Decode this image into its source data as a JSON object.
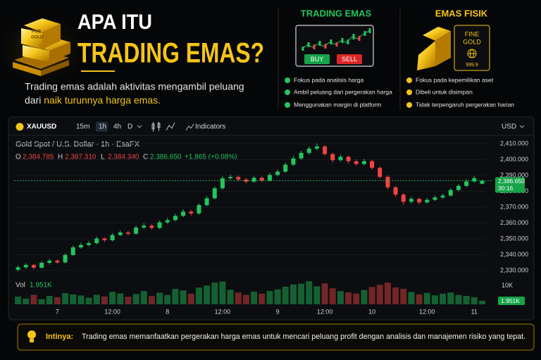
{
  "header": {
    "title_line1": "APA ITU",
    "title_line2": "TRADING EMAS?",
    "description_line1": "Trading emas adalah aktivitas mengambil peluang",
    "description_line2": "dari",
    "description_highlight": "naik turunnya harga emas."
  },
  "panels": [
    {
      "title": "TRADING EMAS",
      "buttons": [
        "BUY",
        "SELL"
      ],
      "points": [
        "Fokus pada analisis harga",
        "Ambil peluang dari pergerakan harga",
        "Menggunakan margin di platform"
      ]
    },
    {
      "title": "EMAS FISIK",
      "bar_text": [
        "FINE",
        "GOLD"
      ],
      "purity": "999.9",
      "points": [
        "Fokus pada kepemilikan aset",
        "Dibeli untuk disimpan",
        "Tidak terpengaruh pergerakan harian"
      ]
    }
  ],
  "toolbar": {
    "symbol": "XAUUSD",
    "intervals": [
      "15m",
      "1h",
      "4h",
      "D"
    ],
    "indicators": "Indicators",
    "currency": "USD"
  },
  "chart_data": {
    "type": "candlestick",
    "subtitle": "Gold Spot / U.S. Dollar · 1h · EsaFX",
    "ohlc_legend": [
      {
        "key": "O",
        "value": "2,384.785"
      },
      {
        "key": "H",
        "value": "2,387.310"
      },
      {
        "key": "L",
        "value": "2,384.340"
      },
      {
        "key": "C",
        "value": "2,386.650"
      }
    ],
    "change": "+1.865 (+0.08%)",
    "last_price_label": "2,386.650",
    "countdown": "30:16",
    "volume_title": "Vol",
    "volume_label": "1.951K",
    "up_color": "#22c55e",
    "down_color": "#ef4444",
    "categories": [
      null,
      null,
      null,
      null,
      null,
      "7",
      null,
      null,
      null,
      null,
      null,
      null,
      "12:00",
      null,
      null,
      null,
      null,
      null,
      null,
      "8",
      null,
      null,
      null,
      null,
      null,
      null,
      "12:00",
      null,
      null,
      null,
      null,
      null,
      null,
      "9",
      null,
      null,
      null,
      null,
      null,
      "12:00",
      null,
      null,
      null,
      null,
      null,
      "10",
      null,
      null,
      null,
      null,
      null,
      null,
      "12:00",
      null,
      null,
      null,
      null,
      null,
      "11",
      null
    ],
    "open": [
      2330.5,
      2332.0,
      2333.5,
      2331.8,
      2334.9,
      2336.2,
      2335.1,
      2339.8,
      2344.6,
      2346.1,
      2347.3,
      2350.2,
      2349.1,
      2352.4,
      2354.0,
      2353.2,
      2357.1,
      2358.3,
      2356.9,
      2360.4,
      2361.8,
      2364.5,
      2367.2,
      2366.0,
      2371.3,
      2375.6,
      2381.9,
      2388.2,
      2389.0,
      2387.4,
      2386.1,
      2388.5,
      2386.9,
      2390.3,
      2392.4,
      2396.8,
      2400.7,
      2404.2,
      2406.9,
      2408.3,
      2403.5,
      2399.6,
      2401.8,
      2398.9,
      2397.2,
      2399.0,
      2394.8,
      2389.1,
      2382.5,
      2377.9,
      2373.4,
      2375.2,
      2373.0,
      2374.6,
      2376.1,
      2377.3,
      2380.8,
      2383.4,
      2386.2,
      2384.785
    ],
    "high": [
      2333.2,
      2334.6,
      2334.1,
      2335.7,
      2337.4,
      2337.0,
      2340.9,
      2345.8,
      2347.5,
      2348.6,
      2351.4,
      2351.0,
      2353.6,
      2355.3,
      2355.1,
      2358.4,
      2359.9,
      2359.2,
      2361.7,
      2363.2,
      2365.9,
      2368.6,
      2368.3,
      2372.5,
      2377.0,
      2383.2,
      2389.6,
      2390.5,
      2390.1,
      2388.3,
      2389.7,
      2389.4,
      2391.6,
      2393.8,
      2398.1,
      2402.3,
      2405.6,
      2408.4,
      2410.2,
      2409.1,
      2404.3,
      2403.0,
      2402.6,
      2400.1,
      2400.4,
      2399.8,
      2395.7,
      2390.0,
      2383.4,
      2378.8,
      2376.5,
      2376.0,
      2375.9,
      2377.4,
      2378.6,
      2382.0,
      2384.7,
      2387.5,
      2389.6,
      2387.31
    ],
    "low": [
      2329.6,
      2331.2,
      2330.9,
      2331.0,
      2333.8,
      2334.2,
      2334.6,
      2339.1,
      2343.7,
      2345.2,
      2346.5,
      2348.0,
      2348.4,
      2351.6,
      2352.1,
      2352.5,
      2356.2,
      2355.8,
      2356.1,
      2359.5,
      2360.9,
      2363.7,
      2364.8,
      2365.2,
      2370.4,
      2374.8,
      2381.0,
      2387.1,
      2386.2,
      2384.9,
      2385.3,
      2385.8,
      2386.1,
      2389.4,
      2391.6,
      2395.9,
      2399.8,
      2403.1,
      2405.8,
      2402.4,
      2398.2,
      2398.7,
      2397.5,
      2396.0,
      2396.3,
      2393.6,
      2387.9,
      2381.2,
      2376.5,
      2371.6,
      2372.2,
      2371.8,
      2372.1,
      2373.8,
      2375.2,
      2376.5,
      2380.0,
      2382.6,
      2385.4,
      2384.34
    ],
    "close": [
      2332.0,
      2333.5,
      2331.8,
      2334.9,
      2336.2,
      2335.1,
      2339.8,
      2344.6,
      2346.1,
      2347.3,
      2350.2,
      2349.1,
      2352.4,
      2354.0,
      2353.2,
      2357.1,
      2358.3,
      2356.9,
      2360.4,
      2361.8,
      2364.5,
      2367.2,
      2366.0,
      2371.3,
      2375.6,
      2381.9,
      2388.2,
      2389.0,
      2387.4,
      2386.1,
      2388.5,
      2386.9,
      2390.3,
      2392.4,
      2396.8,
      2400.7,
      2404.2,
      2406.9,
      2408.3,
      2403.5,
      2399.6,
      2401.8,
      2398.9,
      2397.2,
      2399.0,
      2394.8,
      2389.1,
      2382.5,
      2377.9,
      2373.4,
      2375.2,
      2373.0,
      2374.6,
      2376.1,
      2377.3,
      2380.8,
      2383.4,
      2386.2,
      2388.3,
      2386.65
    ],
    "volume": [
      4200,
      3100,
      5200,
      2800,
      4600,
      3900,
      6100,
      5400,
      4800,
      3600,
      5200,
      4300,
      6800,
      5900,
      4100,
      5600,
      7200,
      4500,
      6300,
      5100,
      8400,
      7600,
      5800,
      9100,
      10200,
      11800,
      12400,
      7900,
      6400,
      5200,
      6900,
      5800,
      7300,
      8100,
      9600,
      10800,
      11200,
      12600,
      9800,
      11400,
      8700,
      7200,
      6500,
      5900,
      7800,
      9400,
      10600,
      11800,
      9200,
      8500,
      6700,
      5400,
      6200,
      4900,
      5800,
      6400,
      5100,
      4600,
      3900,
      1951
    ],
    "ylim": [
      2326,
      2414
    ],
    "yticks": [
      {
        "value": 2330,
        "label": "2,330.000"
      },
      {
        "value": 2340,
        "label": "2,340.000"
      },
      {
        "value": 2350,
        "label": "2,350.000"
      },
      {
        "value": 2360,
        "label": "2,360.000"
      },
      {
        "value": 2370,
        "label": "2,370.000"
      },
      {
        "value": 2380,
        "label": "2,380.000"
      },
      {
        "value": 2390,
        "label": "2,390.000"
      },
      {
        "value": 2400,
        "label": "2,400.000"
      },
      {
        "value": 2410,
        "label": "2,410.000"
      }
    ],
    "volume_ylim": [
      0,
      13000
    ],
    "volume_yticks": [
      {
        "value": 10000,
        "label": "10K"
      }
    ],
    "grid": true
  },
  "footer": {
    "label": "Intinya:",
    "text": "Trading emas memanfaatkan pergerakan harga emas untuk mencari peluang profit dengan analisis dan manajemen risiko yang tepat."
  }
}
